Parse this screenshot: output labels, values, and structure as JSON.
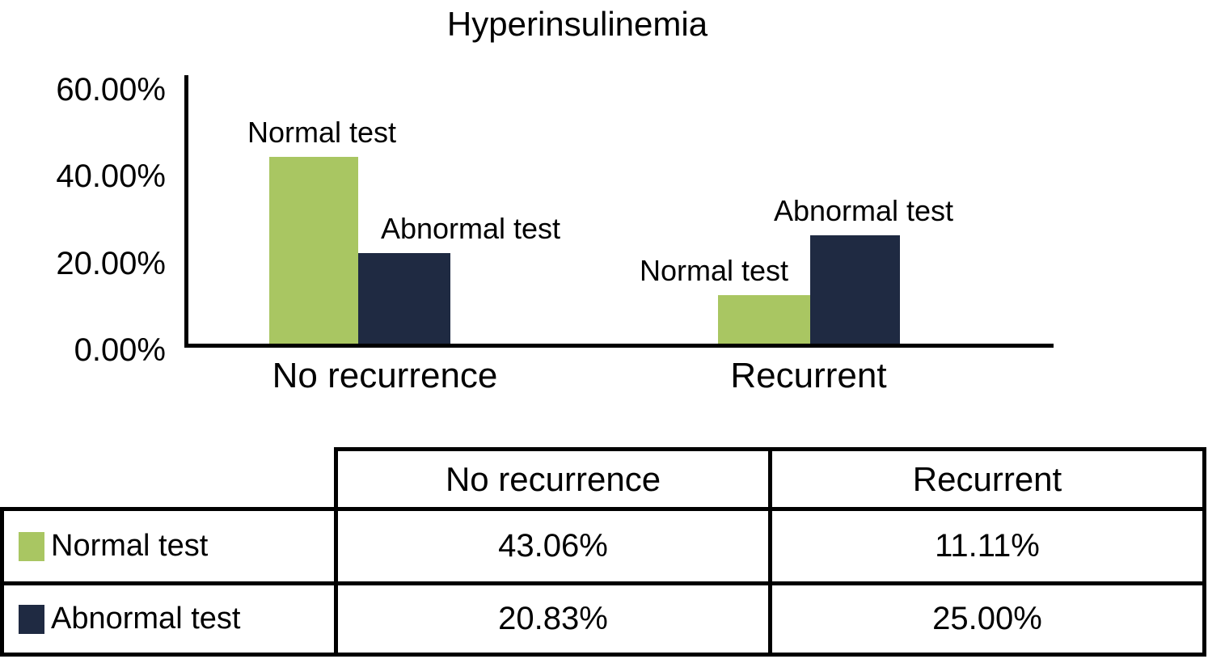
{
  "figure": {
    "title": "Hyperinsulinemia"
  },
  "chart_data": {
    "type": "bar",
    "title": "Hyperinsulinemia",
    "categories": [
      "No recurrence",
      "Recurrent"
    ],
    "series": [
      {
        "name": "Normal test",
        "color": "#a9c662",
        "values": [
          43.06,
          11.11
        ]
      },
      {
        "name": "Abnormal test",
        "color": "#1f2a42",
        "values": [
          20.83,
          25.0
        ]
      }
    ],
    "y_ticks": [
      "60.00%",
      "40.00%",
      "20.00%",
      "0.00%"
    ],
    "ylim": [
      0,
      60
    ],
    "xlabel": "",
    "ylabel": "",
    "grid": false,
    "bar_value_labels": "series-name-above-bar",
    "legend_position": "table-below"
  },
  "table": {
    "col_headers": [
      "No recurrence",
      "Recurrent"
    ],
    "rows": [
      {
        "label": "Normal test",
        "swatch_color": "#a9c662",
        "values": [
          "43.06%",
          "11.11%"
        ]
      },
      {
        "label": "Abnormal test",
        "swatch_color": "#1f2a42",
        "values": [
          "20.83%",
          "25.00%"
        ]
      }
    ]
  },
  "colors": {
    "normal_test": "#a9c662",
    "abnormal_test": "#1f2a42",
    "axis": "#000000"
  }
}
